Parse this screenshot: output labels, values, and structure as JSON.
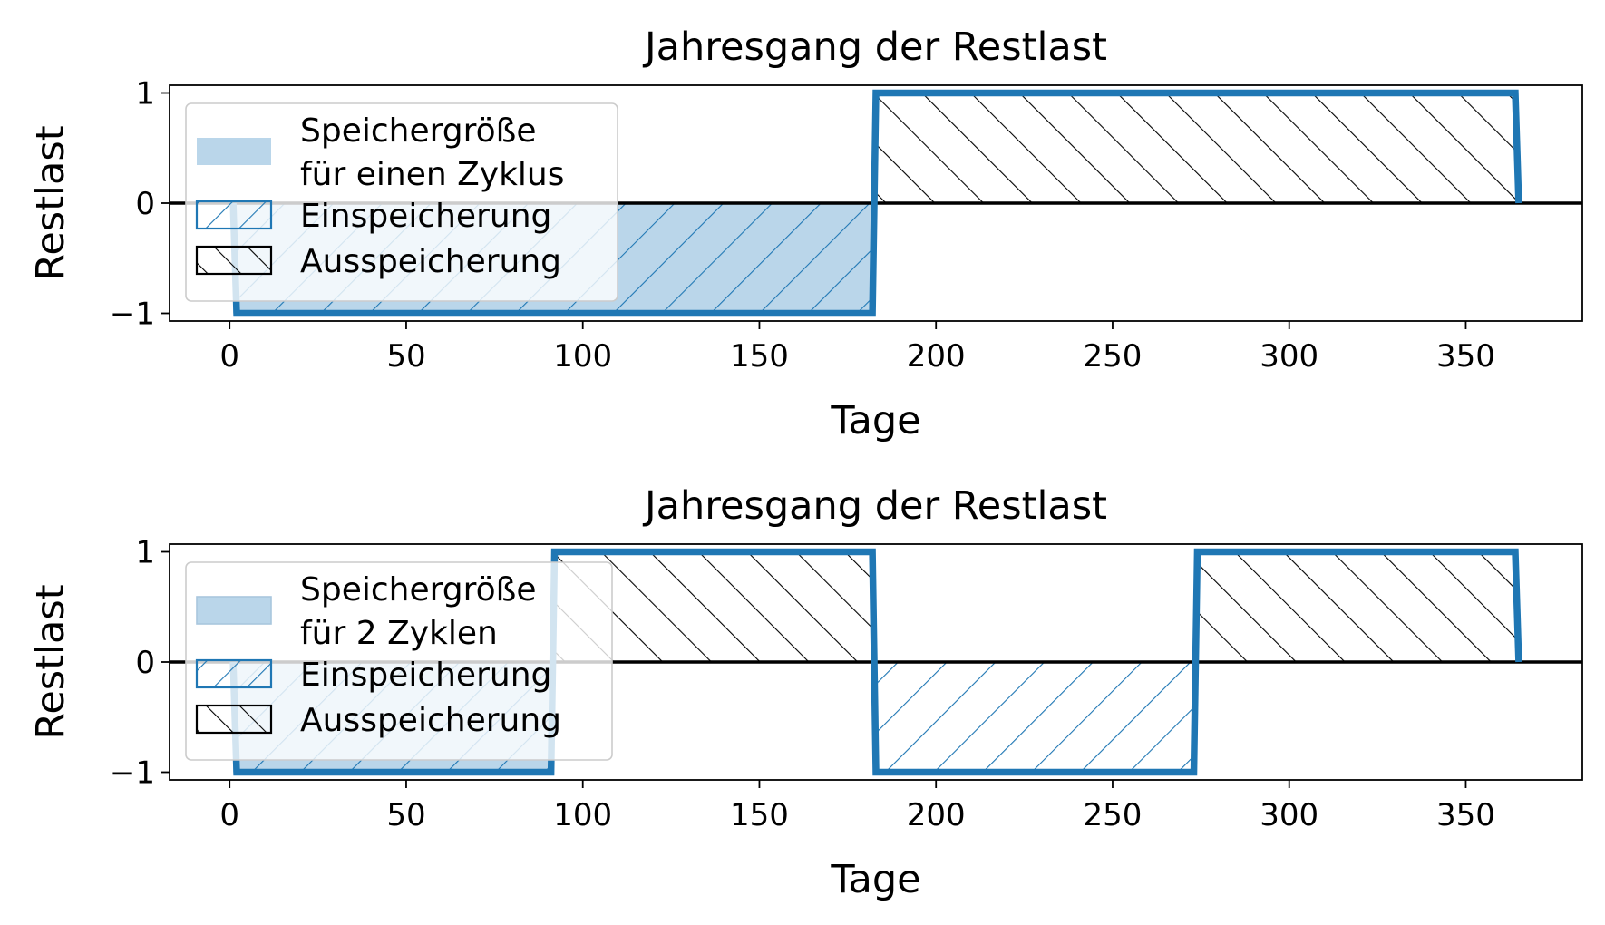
{
  "chart_data": [
    {
      "type": "area",
      "title": "Jahresgang der Restlast",
      "xlabel": "Tage",
      "ylabel": "Restlast",
      "xlim": [
        -17,
        383
      ],
      "ylim": [
        -1.07,
        1.07
      ],
      "x_ticks": [
        0,
        50,
        100,
        150,
        200,
        250,
        300,
        350
      ],
      "y_ticks": [
        -1,
        0,
        1
      ],
      "grid": false,
      "zero_line": true,
      "legend_position": "upper-left",
      "series": [
        {
          "name": "Restlast",
          "x": [
            1,
            2,
            182,
            183,
            364,
            365
          ],
          "values": [
            0,
            -1,
            -1,
            1,
            1,
            0
          ],
          "color": "#1f77b4"
        }
      ],
      "shaded_regions": [
        {
          "series": "Speichergröße für einen Zyklus",
          "from": 1,
          "to": 182,
          "y": -1,
          "style": "solid-light"
        },
        {
          "series": "Einspeicherung",
          "from": 1,
          "to": 182,
          "y": -1,
          "style": "hatch-forward"
        },
        {
          "series": "Ausspeicherung",
          "from": 183,
          "to": 365,
          "y": 1,
          "style": "hatch-back"
        }
      ],
      "legend": [
        {
          "label_lines": [
            "Speichergröße",
            "für einen Zyklus"
          ],
          "style": "solid-light"
        },
        {
          "label_lines": [
            "Einspeicherung"
          ],
          "style": "hatch-forward"
        },
        {
          "label_lines": [
            "Ausspeicherung"
          ],
          "style": "hatch-back"
        }
      ]
    },
    {
      "type": "area",
      "title": "Jahresgang der Restlast",
      "xlabel": "Tage",
      "ylabel": "Restlast",
      "xlim": [
        -17,
        383
      ],
      "ylim": [
        -1.07,
        1.07
      ],
      "x_ticks": [
        0,
        50,
        100,
        150,
        200,
        250,
        300,
        350
      ],
      "y_ticks": [
        -1,
        0,
        1
      ],
      "grid": false,
      "zero_line": true,
      "legend_position": "upper-left",
      "series": [
        {
          "name": "Restlast",
          "x": [
            1,
            2,
            91,
            92,
            182,
            183,
            273,
            274,
            364,
            365
          ],
          "values": [
            0,
            -1,
            -1,
            1,
            1,
            -1,
            -1,
            1,
            1,
            0
          ],
          "color": "#1f77b4"
        }
      ],
      "shaded_regions": [
        {
          "series": "Speichergröße für 2 Zyklen",
          "from": 1,
          "to": 91,
          "y": -1,
          "style": "solid-light"
        },
        {
          "series": "Einspeicherung",
          "from": 1,
          "to": 91,
          "y": -1,
          "style": "hatch-forward"
        },
        {
          "series": "Ausspeicherung",
          "from": 92,
          "to": 182,
          "y": 1,
          "style": "hatch-back"
        },
        {
          "series": "Einspeicherung",
          "from": 183,
          "to": 273,
          "y": -1,
          "style": "hatch-forward"
        },
        {
          "series": "Ausspeicherung",
          "from": 274,
          "to": 365,
          "y": 1,
          "style": "hatch-back"
        }
      ],
      "legend": [
        {
          "label_lines": [
            "Speichergröße",
            "für 2 Zyklen"
          ],
          "style": "solid-light"
        },
        {
          "label_lines": [
            "Einspeicherung"
          ],
          "style": "hatch-forward"
        },
        {
          "label_lines": [
            "Ausspeicherung"
          ],
          "style": "hatch-back"
        }
      ]
    }
  ],
  "colors": {
    "line": "#1f77b4",
    "fill_light": "#bad6ea",
    "hatch_in": "#1f77b4",
    "hatch_out": "#000000",
    "axis": "#000000"
  }
}
